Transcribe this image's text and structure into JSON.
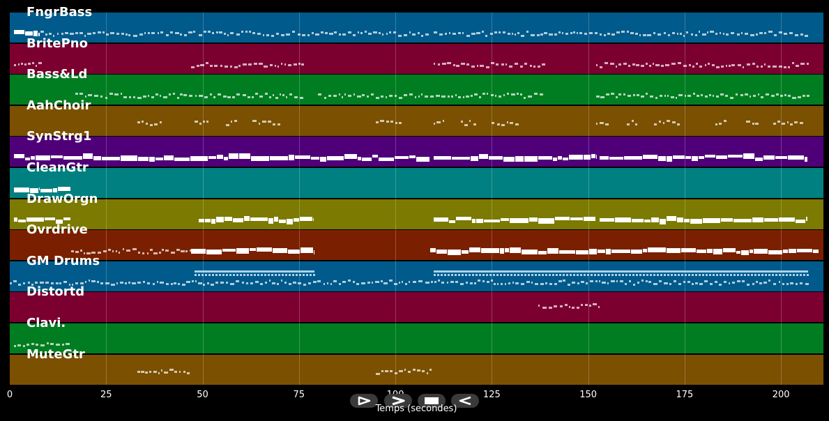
{
  "chart_data": {
    "type": "piano-roll",
    "xlabel": "Temps (secondes)",
    "xlim": [
      0,
      211
    ],
    "x_ticks": [
      0,
      25,
      50,
      75,
      100,
      125,
      150,
      175,
      200
    ],
    "tracks": [
      {
        "name": "FngrBass",
        "color": "#005a8b"
      },
      {
        "name": "BritePno",
        "color": "#7b0030"
      },
      {
        "name": "Bass&Ld",
        "color": "#007d21"
      },
      {
        "name": "AahChoir",
        "color": "#7b5000"
      },
      {
        "name": "SynStrg1",
        "color": "#4f0079"
      },
      {
        "name": "CleanGtr",
        "color": "#008080"
      },
      {
        "name": "DrawOrgn",
        "color": "#7c7a00"
      },
      {
        "name": "Ovrdrive",
        "color": "#7a2000"
      },
      {
        "name": "GM Drums",
        "color": "#005a8b"
      },
      {
        "name": "Distortd",
        "color": "#7b0030"
      },
      {
        "name": "Clavi.",
        "color": "#007d21"
      },
      {
        "name": "MuteGtr",
        "color": "#7b5000"
      }
    ],
    "note_segments": [
      {
        "track": 0,
        "start": 1,
        "end": 8,
        "style": "thick"
      },
      {
        "track": 0,
        "start": 8,
        "end": 48,
        "style": "dotted"
      },
      {
        "track": 0,
        "start": 49,
        "end": 109,
        "style": "dotted"
      },
      {
        "track": 0,
        "start": 110,
        "end": 152,
        "style": "dotted"
      },
      {
        "track": 0,
        "start": 153,
        "end": 207,
        "style": "dotted"
      },
      {
        "track": 1,
        "start": 1,
        "end": 8,
        "style": "dotted"
      },
      {
        "track": 1,
        "start": 47,
        "end": 76,
        "style": "dotted"
      },
      {
        "track": 1,
        "start": 110,
        "end": 138,
        "style": "dotted"
      },
      {
        "track": 1,
        "start": 152,
        "end": 207,
        "style": "dotted"
      },
      {
        "track": 2,
        "start": 17,
        "end": 76,
        "style": "dotted"
      },
      {
        "track": 2,
        "start": 80,
        "end": 138,
        "style": "dotted"
      },
      {
        "track": 2,
        "start": 152,
        "end": 207,
        "style": "dotted"
      },
      {
        "track": 3,
        "start": 33,
        "end": 39,
        "style": "dotted"
      },
      {
        "track": 3,
        "start": 48,
        "end": 51,
        "style": "dotted"
      },
      {
        "track": 3,
        "start": 56,
        "end": 59,
        "style": "dotted"
      },
      {
        "track": 3,
        "start": 63,
        "end": 70,
        "style": "dotted"
      },
      {
        "track": 3,
        "start": 95,
        "end": 101,
        "style": "dotted"
      },
      {
        "track": 3,
        "start": 110,
        "end": 113,
        "style": "dotted"
      },
      {
        "track": 3,
        "start": 117,
        "end": 121,
        "style": "dotted"
      },
      {
        "track": 3,
        "start": 125,
        "end": 132,
        "style": "dotted"
      },
      {
        "track": 3,
        "start": 152,
        "end": 155,
        "style": "dotted"
      },
      {
        "track": 3,
        "start": 160,
        "end": 163,
        "style": "dotted"
      },
      {
        "track": 3,
        "start": 167,
        "end": 174,
        "style": "dotted"
      },
      {
        "track": 3,
        "start": 183,
        "end": 186,
        "style": "dotted"
      },
      {
        "track": 3,
        "start": 191,
        "end": 194,
        "style": "dotted"
      },
      {
        "track": 3,
        "start": 198,
        "end": 205,
        "style": "dotted"
      },
      {
        "track": 4,
        "start": 1,
        "end": 109,
        "style": "thick"
      },
      {
        "track": 4,
        "start": 110,
        "end": 152,
        "style": "thick"
      },
      {
        "track": 4,
        "start": 153,
        "end": 207,
        "style": "thick"
      },
      {
        "track": 5,
        "start": 1,
        "end": 8,
        "style": "thick"
      },
      {
        "track": 5,
        "start": 8,
        "end": 16,
        "style": "thick"
      },
      {
        "track": 6,
        "start": 1,
        "end": 16,
        "style": "thick"
      },
      {
        "track": 6,
        "start": 49,
        "end": 79,
        "style": "thick"
      },
      {
        "track": 6,
        "start": 110,
        "end": 152,
        "style": "thick"
      },
      {
        "track": 6,
        "start": 153,
        "end": 207,
        "style": "thick"
      },
      {
        "track": 7,
        "start": 16,
        "end": 47,
        "style": "dotted"
      },
      {
        "track": 7,
        "start": 47,
        "end": 79,
        "style": "thick"
      },
      {
        "track": 7,
        "start": 109,
        "end": 193,
        "style": "thick"
      },
      {
        "track": 7,
        "start": 193,
        "end": 210,
        "style": "thick"
      },
      {
        "track": 8,
        "start": 0,
        "end": 207,
        "style": "dotted"
      },
      {
        "track": 8,
        "start": 48,
        "end": 79,
        "style": "blue"
      },
      {
        "track": 8,
        "start": 110,
        "end": 207,
        "style": "blue"
      },
      {
        "track": 9,
        "start": 137,
        "end": 153,
        "style": "dotted"
      },
      {
        "track": 10,
        "start": 1,
        "end": 16,
        "style": "dotted"
      },
      {
        "track": 11,
        "start": 33,
        "end": 47,
        "style": "dotted"
      },
      {
        "track": 11,
        "start": 95,
        "end": 109,
        "style": "dotted"
      }
    ]
  },
  "controls": [
    {
      "name": "play-button",
      "icon": "play-icon"
    },
    {
      "name": "forward-button",
      "icon": "forward-icon"
    },
    {
      "name": "stop-button",
      "icon": "stop-icon"
    },
    {
      "name": "rewind-button",
      "icon": "rewind-icon"
    }
  ]
}
